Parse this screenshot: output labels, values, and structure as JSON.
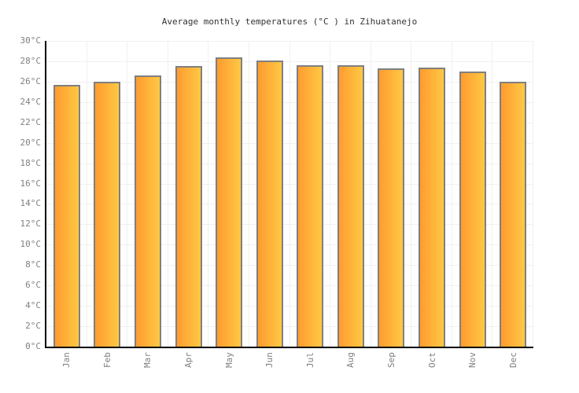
{
  "chart_data": {
    "type": "bar",
    "title": "Average monthly temperatures (°C ) in Zihuatanejo",
    "categories": [
      "Jan",
      "Feb",
      "Mar",
      "Apr",
      "May",
      "Jun",
      "Jul",
      "Aug",
      "Sep",
      "Oct",
      "Nov",
      "Dec"
    ],
    "values": [
      25.7,
      26.0,
      26.6,
      27.5,
      28.4,
      28.1,
      27.6,
      27.6,
      27.3,
      27.4,
      27.0,
      26.0
    ],
    "unit": "°C",
    "xlabel": "",
    "ylabel": "",
    "ylim": [
      0,
      30
    ],
    "ytick_step": 2,
    "ytick_suffix": "°C",
    "ytick_labels": [
      "0°C",
      "2°C",
      "4°C",
      "6°C",
      "8°C",
      "10°C",
      "12°C",
      "14°C",
      "16°C",
      "18°C",
      "20°C",
      "22°C",
      "24°C",
      "26°C",
      "28°C",
      "30°C"
    ],
    "grid": true,
    "legend_position": "none",
    "colors": {
      "bar_gradient_left": "#FF9C30",
      "bar_gradient_right": "#FFC843",
      "bar_border": "#7F7F7F",
      "axis": "#000000",
      "gridline": "#F0F0F0",
      "tick_label": "#808080",
      "title": "#333333",
      "background": "#FFFFFF"
    }
  }
}
